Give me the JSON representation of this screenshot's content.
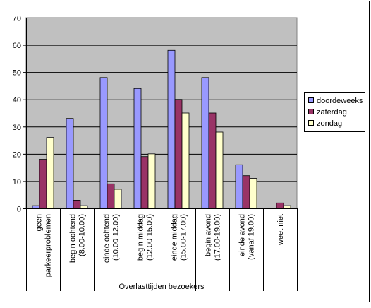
{
  "chart_data": {
    "type": "bar",
    "title": "",
    "xlabel": "Overlasttijden bezoekers",
    "ylabel": "",
    "ylim": [
      0,
      70
    ],
    "yticks": [
      0,
      10,
      20,
      30,
      40,
      50,
      60,
      70
    ],
    "grid": "horizontal",
    "legend_position": "right",
    "categories": [
      [
        "geen",
        "parkeerproblemen"
      ],
      [
        "begin ochtend",
        "(8.00-10.00)"
      ],
      [
        "einde ochtend",
        "(10.00-12.00)"
      ],
      [
        "begin middag",
        "(12.00-15.00)"
      ],
      [
        "einde middag",
        "(15.00-17.00)"
      ],
      [
        "begin avond",
        "(17.00-19.00)"
      ],
      [
        "einde avond",
        "(vanaf 19.00)"
      ],
      [
        "weet niet"
      ]
    ],
    "series": [
      {
        "name": "doordeweeks",
        "color": "#9999ff",
        "values": [
          1,
          33,
          48,
          44,
          58,
          48,
          16,
          0
        ]
      },
      {
        "name": "zaterdag",
        "color": "#993366",
        "values": [
          18,
          3,
          9,
          19,
          40,
          35,
          12,
          2
        ]
      },
      {
        "name": "zondag",
        "color": "#ffffcc",
        "values": [
          26,
          1,
          7,
          20,
          35,
          28,
          11,
          1
        ]
      }
    ],
    "plot_background": "#c0c0c0"
  }
}
